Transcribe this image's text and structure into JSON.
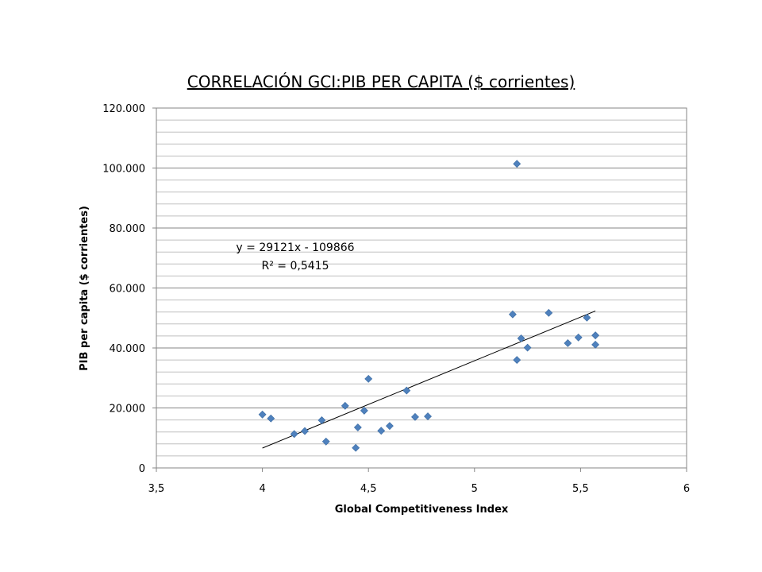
{
  "chart_data": {
    "type": "scatter",
    "title": "CORRELACIÓN GCI:PIB PER CAPITA ($ corrientes)",
    "xlabel": "Global Competitiveness Index",
    "ylabel": "PIB per capita ($ corrientes)",
    "xlim": [
      3.5,
      6
    ],
    "ylim": [
      0,
      120000
    ],
    "x_ticks": [
      3.5,
      4,
      4.5,
      5,
      5.5,
      6
    ],
    "x_tick_labels": [
      "3,5",
      "4",
      "4,5",
      "5",
      "5,5",
      "6"
    ],
    "y_ticks": [
      0,
      20000,
      40000,
      60000,
      80000,
      100000,
      120000
    ],
    "y_tick_labels": [
      "0",
      "20.000",
      "40.000",
      "60.000",
      "80.000",
      "100.000",
      "120.000"
    ],
    "y_minor_step": 4000,
    "grid": "horizontal",
    "marker_color": "#4F81BD",
    "trendline_color": "#000000",
    "points": [
      {
        "x": 4.0,
        "y": 17800
      },
      {
        "x": 4.04,
        "y": 16500
      },
      {
        "x": 4.15,
        "y": 11300
      },
      {
        "x": 4.2,
        "y": 12300
      },
      {
        "x": 4.28,
        "y": 15900
      },
      {
        "x": 4.3,
        "y": 8800
      },
      {
        "x": 4.39,
        "y": 20700
      },
      {
        "x": 4.44,
        "y": 6700
      },
      {
        "x": 4.45,
        "y": 13500
      },
      {
        "x": 4.48,
        "y": 19100
      },
      {
        "x": 4.5,
        "y": 29700
      },
      {
        "x": 4.56,
        "y": 12400
      },
      {
        "x": 4.6,
        "y": 14000
      },
      {
        "x": 4.68,
        "y": 25800
      },
      {
        "x": 4.72,
        "y": 17000
      },
      {
        "x": 4.78,
        "y": 17200
      },
      {
        "x": 5.18,
        "y": 51200
      },
      {
        "x": 5.2,
        "y": 101400
      },
      {
        "x": 5.2,
        "y": 36000
      },
      {
        "x": 5.22,
        "y": 43200
      },
      {
        "x": 5.25,
        "y": 40100
      },
      {
        "x": 5.35,
        "y": 51700
      },
      {
        "x": 5.44,
        "y": 41600
      },
      {
        "x": 5.49,
        "y": 43500
      },
      {
        "x": 5.53,
        "y": 50100
      },
      {
        "x": 5.57,
        "y": 44200
      },
      {
        "x": 5.57,
        "y": 41100
      }
    ],
    "trendline": {
      "slope": 29121,
      "intercept": -109866,
      "x_range": [
        4.0,
        5.57
      ],
      "equation_label": "y = 29121x - 109866",
      "r2_label": "R² = 0,5415"
    }
  }
}
